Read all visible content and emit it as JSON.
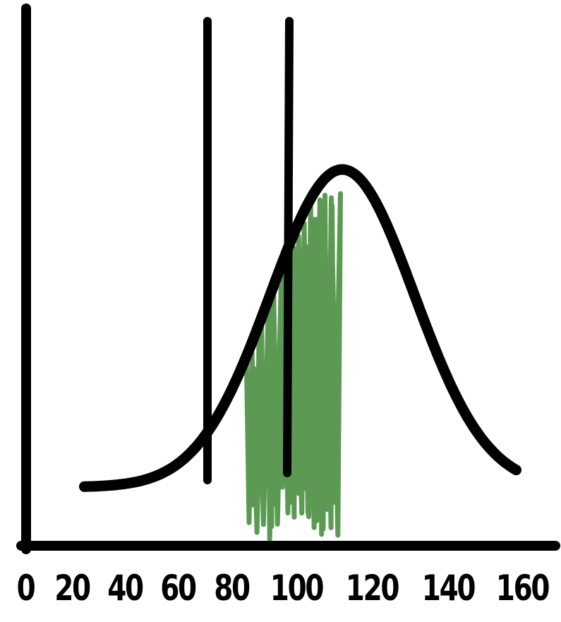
{
  "diagram": {
    "type": "normal-distribution-shaded-interval",
    "x_ticks": [
      "0",
      "20",
      "40",
      "60",
      "80",
      "100",
      "120",
      "140",
      "160"
    ],
    "x_range": [
      0,
      160
    ],
    "curve_mean": 100,
    "curve_sd": 24,
    "interval": {
      "lower": 70,
      "upper": 100
    },
    "colors": {
      "ink": "#000000",
      "shade": "#5c9a54",
      "background": "#ffffff"
    }
  }
}
